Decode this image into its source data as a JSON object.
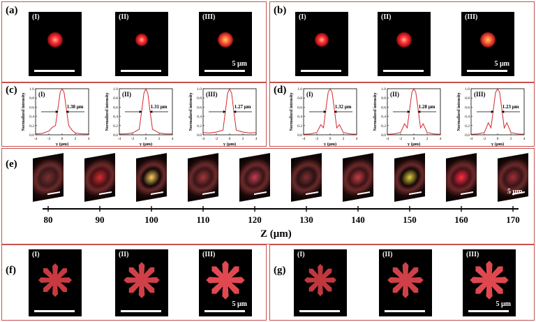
{
  "panel_a": {
    "label": "(a)",
    "subs": [
      "(I)",
      "(II)",
      "(III)"
    ],
    "scale": "5 μm"
  },
  "panel_b": {
    "label": "(b)",
    "subs": [
      "(I)",
      "(II)",
      "(III)"
    ],
    "scale": "5 μm"
  },
  "panel_c": {
    "label": "(c)",
    "plots": [
      {
        "id": "(I)",
        "fwhm": "1.38 μm"
      },
      {
        "id": "(II)",
        "fwhm": "1.31 μm"
      },
      {
        "id": "(III)",
        "fwhm": "1.27 μm"
      }
    ],
    "ylabel": "Normalized intensity",
    "xlabel": "y (μm)"
  },
  "panel_d": {
    "label": "(d)",
    "plots": [
      {
        "id": "(I)",
        "fwhm": "1.32 μm"
      },
      {
        "id": "(II)",
        "fwhm": "1.28 μm"
      },
      {
        "id": "(III)",
        "fwhm": "1.23 μm"
      }
    ],
    "ylabel": "Normalized intensity",
    "xlabel": "y (μm)"
  },
  "panel_e": {
    "label": "(e)",
    "scale": "5 μm",
    "z_ticks": [
      "80",
      "90",
      "100",
      "110",
      "120",
      "130",
      "140",
      "150",
      "160",
      "170"
    ],
    "axis_label": "Z (μm)"
  },
  "panel_f": {
    "label": "(f)",
    "subs": [
      "(I)",
      "(II)",
      "(III)"
    ],
    "scale": "5 μm"
  },
  "panel_g": {
    "label": "(g)",
    "subs": [
      "(I)",
      "(II)",
      "(III)"
    ],
    "scale": "5 μm"
  },
  "chart_data": [
    {
      "type": "line",
      "panel": "c-I",
      "x": [
        -4,
        -3,
        -2,
        -1.5,
        -1,
        -0.6,
        -0.3,
        0,
        0.3,
        0.6,
        1,
        1.5,
        2,
        3,
        4
      ],
      "y": [
        0.02,
        0.03,
        0.08,
        0.16,
        0.2,
        0.6,
        0.92,
        1.0,
        0.92,
        0.6,
        0.2,
        0.1,
        0.04,
        0.02,
        0.02
      ],
      "xlim": [
        -4,
        4
      ],
      "ylim": [
        0,
        1
      ],
      "x_ticks": [
        "-4",
        "-2",
        "0",
        "2",
        "4"
      ],
      "y_ticks": [
        "0.0",
        "0.2",
        "0.4",
        "0.6",
        "0.8",
        "1.0"
      ]
    },
    {
      "type": "line",
      "panel": "c-II",
      "x": [
        -4,
        -3,
        -2,
        -1,
        -0.6,
        -0.3,
        0,
        0.3,
        0.6,
        1,
        2,
        3,
        4
      ],
      "y": [
        0.02,
        0.02,
        0.04,
        0.12,
        0.55,
        0.9,
        1.0,
        0.9,
        0.55,
        0.12,
        0.04,
        0.02,
        0.02
      ],
      "xlim": [
        -4,
        4
      ],
      "ylim": [
        0,
        1
      ],
      "x_ticks": [
        "-4",
        "-2",
        "0",
        "2",
        "4"
      ],
      "y_ticks": [
        "0.0",
        "0.2",
        "0.4",
        "0.6",
        "0.8",
        "1.0"
      ]
    },
    {
      "type": "line",
      "panel": "c-III",
      "x": [
        -4,
        -3,
        -2,
        -1,
        -0.6,
        -0.3,
        0,
        0.3,
        0.6,
        1,
        2,
        3,
        4
      ],
      "y": [
        0.05,
        0.04,
        0.06,
        0.1,
        0.55,
        0.9,
        1.0,
        0.9,
        0.55,
        0.1,
        0.06,
        0.04,
        0.05
      ],
      "xlim": [
        -4,
        4
      ],
      "ylim": [
        0,
        1
      ],
      "x_ticks": [
        "-4",
        "-2",
        "0",
        "2",
        "4"
      ],
      "y_ticks": [
        "0.0",
        "0.2",
        "0.4",
        "0.6",
        "0.8",
        "1.0"
      ]
    },
    {
      "type": "line",
      "panel": "d-I",
      "x": [
        -4,
        -3,
        -2,
        -1.4,
        -1,
        -0.6,
        -0.3,
        0,
        0.3,
        0.6,
        1,
        1.4,
        2,
        3,
        4
      ],
      "y": [
        0.01,
        0.02,
        0.05,
        0.22,
        0.15,
        0.6,
        0.92,
        1.0,
        0.92,
        0.6,
        0.15,
        0.22,
        0.05,
        0.02,
        0.01
      ],
      "xlim": [
        -4,
        4
      ],
      "ylim": [
        0,
        1
      ],
      "x_ticks": [
        "-4",
        "-2",
        "0",
        "2",
        "4"
      ],
      "y_ticks": [
        "0.0",
        "0.2",
        "0.4",
        "0.6",
        "0.8",
        "1.0"
      ]
    },
    {
      "type": "line",
      "panel": "d-II",
      "x": [
        -4,
        -3,
        -2,
        -1.4,
        -1,
        -0.6,
        -0.3,
        0,
        0.3,
        0.6,
        1,
        1.4,
        2,
        3,
        4
      ],
      "y": [
        0.01,
        0.02,
        0.05,
        0.24,
        0.15,
        0.6,
        0.92,
        1.0,
        0.92,
        0.6,
        0.15,
        0.24,
        0.05,
        0.02,
        0.01
      ],
      "xlim": [
        -4,
        4
      ],
      "ylim": [
        0,
        1
      ],
      "x_ticks": [
        "-4",
        "-2",
        "0",
        "2",
        "4"
      ],
      "y_ticks": [
        "0.0",
        "0.2",
        "0.4",
        "0.6",
        "0.8",
        "1.0"
      ]
    },
    {
      "type": "line",
      "panel": "d-III",
      "x": [
        -4,
        -3,
        -2,
        -1.4,
        -1,
        -0.6,
        -0.3,
        0,
        0.3,
        0.6,
        1,
        1.4,
        2,
        3,
        4
      ],
      "y": [
        0.01,
        0.02,
        0.05,
        0.26,
        0.15,
        0.6,
        0.92,
        1.0,
        0.92,
        0.6,
        0.15,
        0.26,
        0.05,
        0.02,
        0.01
      ],
      "xlim": [
        -4,
        4
      ],
      "ylim": [
        0,
        1
      ],
      "x_ticks": [
        "-4",
        "-2",
        "0",
        "2",
        "4"
      ],
      "y_ticks": [
        "0.0",
        "0.2",
        "0.4",
        "0.6",
        "0.8",
        "1.0"
      ]
    }
  ]
}
